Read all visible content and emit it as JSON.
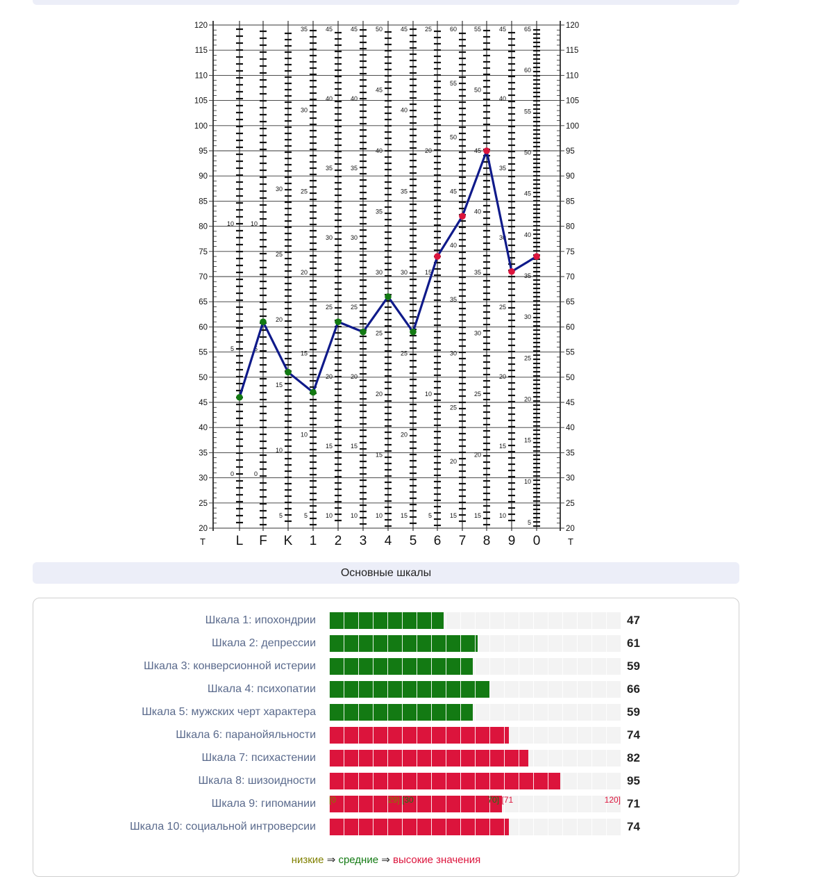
{
  "chart_data": {
    "type": "line",
    "left_axis_title": "T",
    "right_axis_title": "T",
    "yticks": [
      120,
      115,
      110,
      105,
      100,
      95,
      90,
      85,
      80,
      75,
      70,
      65,
      60,
      55,
      50,
      45,
      40,
      35,
      30,
      25,
      20
    ],
    "ylim": [
      20,
      120
    ],
    "columns": [
      "L",
      "F",
      "K",
      "1",
      "2",
      "3",
      "4",
      "5",
      "6",
      "7",
      "8",
      "9",
      "0"
    ],
    "values": [
      46,
      61,
      51,
      47,
      61,
      59,
      66,
      59,
      74,
      82,
      95,
      71,
      74
    ],
    "point_colors": [
      "#137a13",
      "#137a13",
      "#137a13",
      "#137a13",
      "#137a13",
      "#137a13",
      "#137a13",
      "#137a13",
      "#dc143c",
      "#dc143c",
      "#dc143c",
      "#dc143c",
      "#dc143c"
    ],
    "line_color": "#0f1a8a",
    "raw_scale_labels": [
      [
        "10",
        "5",
        "0"
      ],
      [
        "10",
        "5",
        "0"
      ],
      [
        "30",
        "25",
        "20",
        "15",
        "10",
        "5"
      ],
      [
        "35",
        "30",
        "25",
        "20",
        "15",
        "10",
        "5"
      ],
      [
        "45",
        "40",
        "35",
        "30",
        "25",
        "20",
        "15",
        "10"
      ],
      [
        "45",
        "40",
        "35",
        "30",
        "25",
        "20",
        "15",
        "10"
      ],
      [
        "50",
        "45",
        "40",
        "35",
        "30",
        "25",
        "20",
        "15",
        "10"
      ],
      [
        "45",
        "40",
        "35",
        "30",
        "25",
        "20",
        "15"
      ],
      [
        "25",
        "20",
        "15",
        "10",
        "5"
      ],
      [
        "60",
        "55",
        "50",
        "45",
        "40",
        "35",
        "30",
        "25",
        "20",
        "15"
      ],
      [
        "55",
        "50",
        "45",
        "40",
        "35",
        "30",
        "25",
        "20",
        "15"
      ],
      [
        "45",
        "40",
        "35",
        "30",
        "25",
        "20",
        "15",
        "10"
      ],
      [
        "65",
        "60",
        "55",
        "50",
        "45",
        "40",
        "35",
        "30",
        "25",
        "20",
        "15",
        "10",
        "5"
      ]
    ]
  },
  "section_title": "Основные шкалы",
  "bars": {
    "max": 120,
    "rows": [
      {
        "label": "Шкала 1: ипохондрии",
        "value": 47,
        "value_text": "47",
        "color": "#137a13"
      },
      {
        "label": "Шкала 2: депрессии",
        "value": 61,
        "value_text": "61",
        "color": "#137a13"
      },
      {
        "label": "Шкала 3: конверсионной истерии",
        "value": 59,
        "value_text": "59",
        "color": "#137a13"
      },
      {
        "label": "Шкала 4: психопатии",
        "value": 66,
        "value_text": "66",
        "color": "#137a13"
      },
      {
        "label": "Шкала 5: мужских черт характера",
        "value": 59,
        "value_text": "59",
        "color": "#137a13"
      },
      {
        "label": "Шкала 6: паранойяльности",
        "value": 74,
        "value_text": "74",
        "color": "#dc143c"
      },
      {
        "label": "Шкала 7: психастении",
        "value": 82,
        "value_text": "82",
        "color": "#dc143c"
      },
      {
        "label": "Шкала 8: шизоидности",
        "value": 95,
        "value_text": "95",
        "color": "#dc143c"
      },
      {
        "label": "Шкала 9: гипомании",
        "value": 71,
        "value_text": "71",
        "color": "#dc143c"
      },
      {
        "label": "Шкала 10: социальной интроверсии",
        "value": 74,
        "value_text": "74",
        "color": "#dc143c"
      }
    ],
    "ticks": [
      {
        "text": "[0",
        "value": 0,
        "color": "#808000"
      },
      {
        "text": "29]",
        "value": 29,
        "color": "#808000",
        "anchor": "end"
      },
      {
        "text": "[30",
        "value": 30,
        "color": "#137a13"
      },
      {
        "text": "70]",
        "value": 70,
        "color": "#137a13",
        "anchor": "end"
      },
      {
        "text": "[71",
        "value": 71,
        "color": "#dc143c"
      },
      {
        "text": "120]",
        "value": 120,
        "color": "#dc143c",
        "anchor": "end"
      }
    ]
  },
  "legend": {
    "low": "низкие",
    "arrow1": " ⇒ ",
    "mid": "средние",
    "arrow2": " ⇒ ",
    "high": "высокие значения",
    "low_color": "#808000",
    "mid_color": "#137a13",
    "high_color": "#dc143c"
  }
}
